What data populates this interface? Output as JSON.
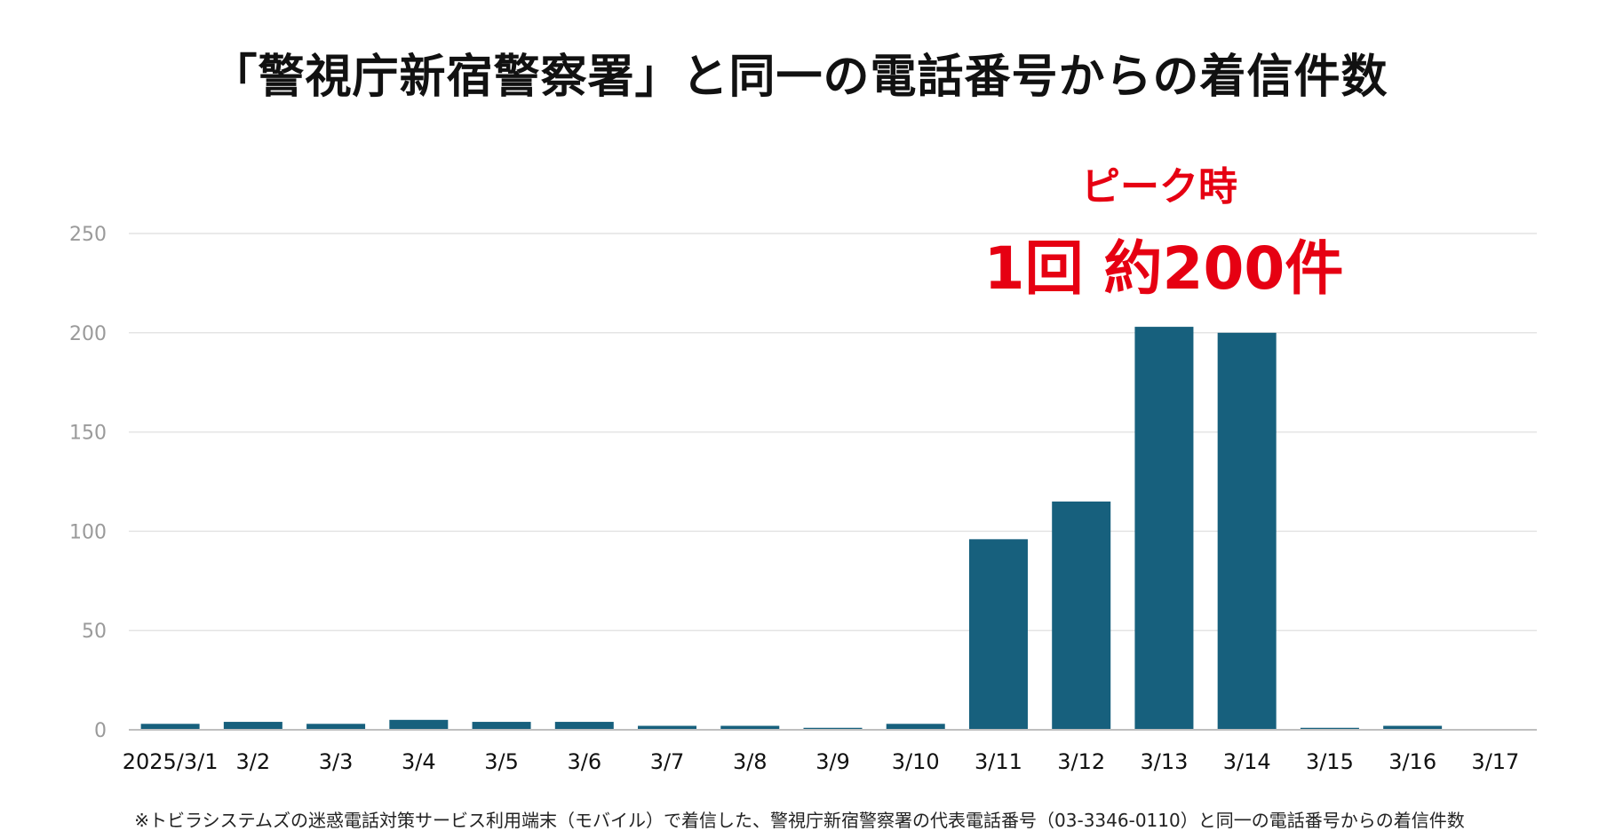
{
  "title": "「警視庁新宿警察署」と同一の電話番号からの着信件数",
  "annotation": {
    "line1": "ピーク時",
    "line2": "1回 約200件"
  },
  "footnote": "※トビラシステムズの迷惑電話対策サービス利用端末（モバイル）で着信した、警視庁新宿警察署の代表電話番号（03-3346-0110）と同一の電話番号からの着信件数",
  "colors": {
    "bar": "#17607d",
    "grid": "#e4e4e4",
    "axis": "#bfbfbf",
    "annotation": "#e60012"
  },
  "chart_data": {
    "type": "bar",
    "title": "「警視庁新宿警察署」と同一の電話番号からの着信件数",
    "xlabel": "",
    "ylabel": "",
    "categories": [
      "2025/3/1",
      "3/2",
      "3/3",
      "3/4",
      "3/5",
      "3/6",
      "3/7",
      "3/8",
      "3/9",
      "3/10",
      "3/11",
      "3/12",
      "3/13",
      "3/14",
      "3/15",
      "3/16",
      "3/17"
    ],
    "values": [
      3,
      4,
      3,
      5,
      4,
      4,
      2,
      2,
      1,
      3,
      96,
      115,
      203,
      200,
      1,
      2,
      0
    ],
    "ylim": [
      0,
      250
    ],
    "yticks": [
      0,
      50,
      100,
      150,
      200,
      250
    ],
    "grid": true,
    "legend": "none"
  }
}
